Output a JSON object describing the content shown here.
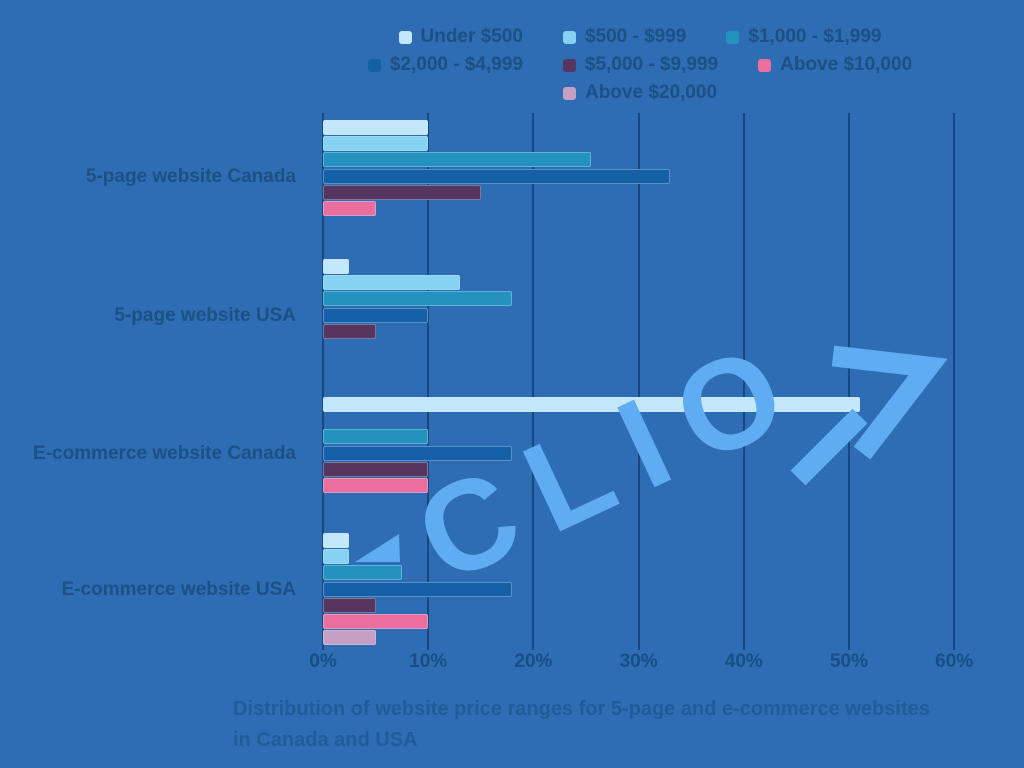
{
  "colors": {
    "background": "#2e6cb4",
    "gridline": "#15497f",
    "label_text": "#1b5183",
    "tick_text": "#174f85",
    "caption_text": "#1f5c99",
    "watermark": "#60acf2"
  },
  "watermark": {
    "text": "CLIO"
  },
  "caption": {
    "line1": "Distribution of website price ranges for 5-page and e-commerce websites",
    "line2": "in Canada and USA"
  },
  "chart_data": {
    "type": "bar",
    "orientation": "horizontal",
    "title": "Distribution of website price ranges for 5-page and e-commerce websites in Canada and USA",
    "categories": [
      "5-page website Canada",
      "5-page website USA",
      "E-commerce website Canada",
      "E-commerce website USA"
    ],
    "series": [
      {
        "name": "Under $500",
        "color": "#c3e7fb",
        "values": [
          10,
          2.5,
          51,
          2.5
        ]
      },
      {
        "name": "$500 - $999",
        "color": "#85d2f2",
        "values": [
          10,
          13,
          null,
          2.5
        ]
      },
      {
        "name": "$1,000 - $1,999",
        "color": "#2492bf",
        "values": [
          25.5,
          18,
          10,
          7.5
        ]
      },
      {
        "name": "$2,000 - $4,999",
        "color": "#1560a6",
        "values": [
          33,
          10,
          18,
          18
        ]
      },
      {
        "name": "$5,000 - $9,999",
        "color": "#56355f",
        "values": [
          15,
          5,
          10,
          5
        ]
      },
      {
        "name": "Above $10,000",
        "color": "#ea6f9e",
        "values": [
          5,
          null,
          10,
          10
        ]
      },
      {
        "name": "Above $20,000",
        "color": "#c69fc4",
        "values": [
          null,
          null,
          null,
          5
        ]
      }
    ],
    "xlim": [
      0,
      60
    ],
    "x_tick_step": 10,
    "x_tick_labels": [
      "0%",
      "10%",
      "20%",
      "30%",
      "40%",
      "50%",
      "60%"
    ],
    "grid": "vertical",
    "legend_position": "top"
  }
}
